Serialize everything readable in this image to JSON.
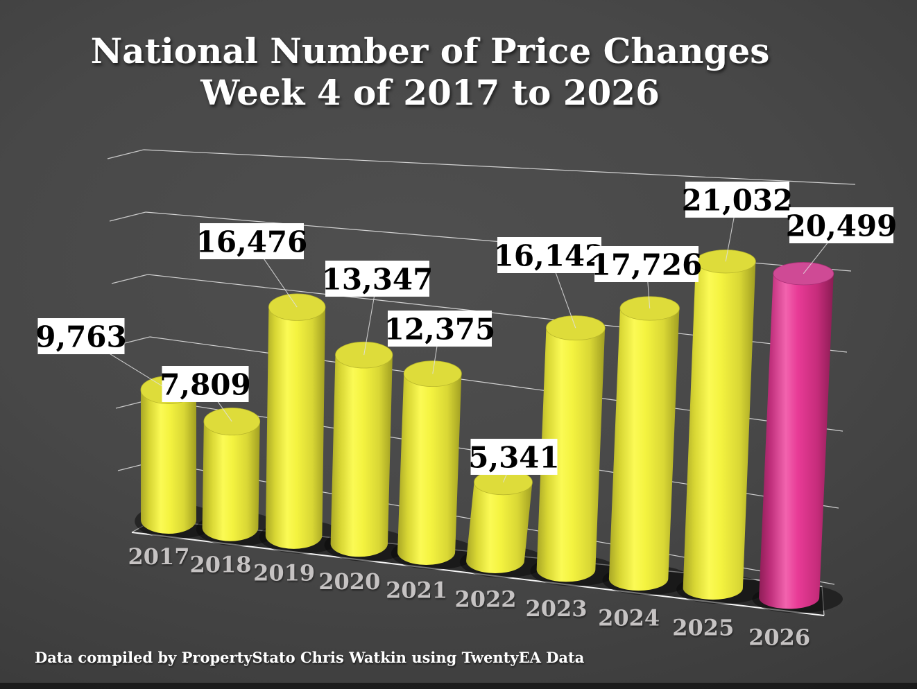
{
  "title": {
    "line1": "National Number of Price Changes",
    "line2": "Week 4 of 2017 to 2026"
  },
  "footer": "Data compiled by PropertyStato Chris Watkin using TwentyEA Data",
  "chart_data": {
    "type": "bar",
    "subtype": "3d-cylinder",
    "title": "National Number of Price Changes Week 4 of 2017 to 2026",
    "categories": [
      "2017",
      "2018",
      "2019",
      "2020",
      "2021",
      "2022",
      "2023",
      "2024",
      "2025",
      "2026"
    ],
    "values": [
      9763,
      7809,
      16476,
      13347,
      12375,
      5341,
      16142,
      17726,
      21032,
      20499
    ],
    "data_labels": [
      "9,763",
      "7,809",
      "16,476",
      "13,347",
      "12,375",
      "5,341",
      "16,142",
      "17,726",
      "21,032",
      "20,499"
    ],
    "ylim": [
      0,
      24000
    ],
    "gridline_count": 6,
    "legend": "none",
    "colors": {
      "bar_default": "#efed3e",
      "bar_highlight_last": "#e23a92",
      "data_label_bg": "#ffffff",
      "data_label_text": "#000000",
      "category_label": "#c6c3c3",
      "gridline": "#ffffff",
      "leader_line": "#e0e0e0"
    }
  }
}
